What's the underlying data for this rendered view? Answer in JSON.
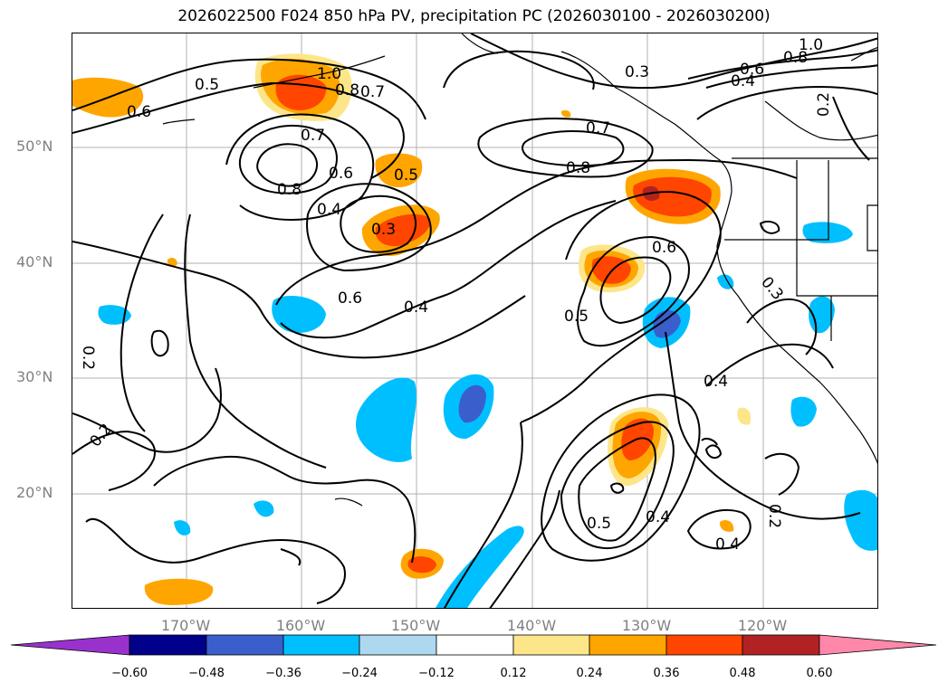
{
  "title": "2026022500 F024 850 hPa PV, precipitation PC (2026030100 - 2026030200)",
  "latitude_labels": [
    "50°N",
    "40°N",
    "30°N",
    "20°N"
  ],
  "longitude_labels": [
    "170°W",
    "160°W",
    "150°W",
    "140°W",
    "130°W",
    "120°W"
  ],
  "colorbar": {
    "tick_labels": [
      "−0.60",
      "−0.48",
      "−0.36",
      "−0.24",
      "−0.12",
      "0.12",
      "0.24",
      "0.36",
      "0.48",
      "0.60"
    ],
    "colors": [
      "#9932cc",
      "#00008b",
      "#3a5fcd",
      "#00bfff",
      "#add8f0",
      "#ffffff",
      "#fde68a",
      "#ffa500",
      "#ff4500",
      "#b22222",
      "#ff88aa"
    ]
  },
  "contour_labels": [
    "0.5",
    "0.6",
    "1.0",
    "0.8",
    "0.7",
    "0.7",
    "0.8",
    "0.6",
    "0.4",
    "0.5",
    "0.3",
    "0.6",
    "0.4",
    "0.7",
    "0.8",
    "0.3",
    "0.6",
    "0.4",
    "0.8",
    "1.0",
    "0.2",
    "0.6",
    "0.5",
    "0.3",
    "0.4",
    "0.2",
    "0.2",
    "0.5",
    "0.4",
    "0.4",
    "0.2"
  ]
}
